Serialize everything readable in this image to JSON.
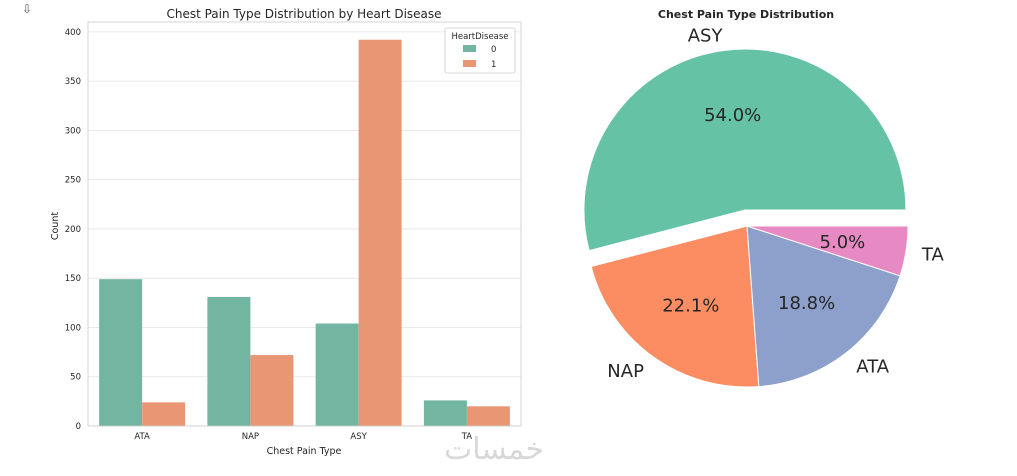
{
  "corner_icon": "download-icon",
  "watermark": "خمسات",
  "chart_data": [
    {
      "type": "bar",
      "title": "Chest Pain Type Distribution by Heart Disease",
      "xlabel": "Chest Pain Type",
      "ylabel": "Count",
      "categories": [
        "ATA",
        "NAP",
        "ASY",
        "TA"
      ],
      "ylim": [
        0,
        410
      ],
      "yticks": [
        0,
        50,
        100,
        150,
        200,
        250,
        300,
        350,
        400
      ],
      "grid": true,
      "legend": {
        "title": "HeartDisease",
        "placement": "top-right"
      },
      "series": [
        {
          "name": "0",
          "color": "#72b6a1",
          "values": [
            149,
            131,
            104,
            26
          ]
        },
        {
          "name": "1",
          "color": "#e99675",
          "values": [
            24,
            72,
            392,
            20
          ]
        }
      ]
    },
    {
      "type": "pie",
      "title": "Chest Pain Type Distribution",
      "slices": [
        {
          "label": "ASY",
          "value": 54.0,
          "pct": "54.0%",
          "color": "#66c2a5",
          "explode": true
        },
        {
          "label": "NAP",
          "value": 22.1,
          "pct": "22.1%",
          "color": "#fc8d62",
          "explode": false
        },
        {
          "label": "ATA",
          "value": 18.8,
          "pct": "18.8%",
          "color": "#8da0cb",
          "explode": false
        },
        {
          "label": "TA",
          "value": 5.0,
          "pct": "5.0%",
          "color": "#e78ac3",
          "explode": false
        }
      ]
    }
  ]
}
